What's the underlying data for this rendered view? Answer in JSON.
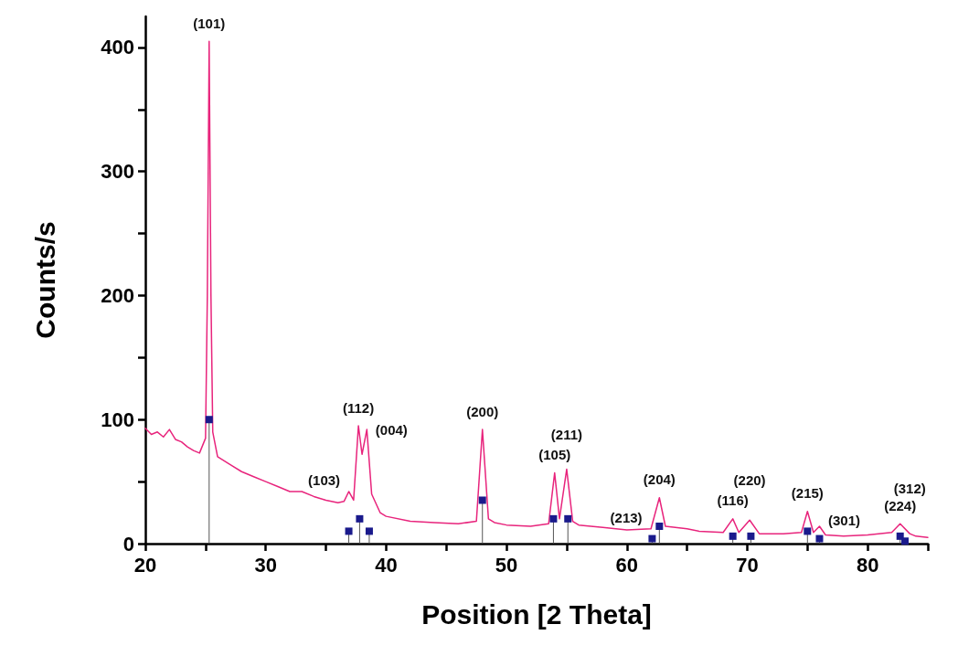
{
  "chart_data": {
    "type": "line",
    "xlabel": "Position [2 Theta]",
    "ylabel": "Counts/s",
    "xlim": [
      20,
      85
    ],
    "ylim": [
      0,
      425
    ],
    "xticks": [
      20,
      {
        "value": 25,
        "label": null
      },
      30,
      {
        "value": 35,
        "label": null
      },
      40,
      {
        "value": 45,
        "label": null
      },
      50,
      {
        "value": 55,
        "label": null
      },
      60,
      {
        "value": 65,
        "label": null
      },
      70,
      {
        "value": 75,
        "label": null
      },
      80,
      {
        "value": 85,
        "label": null
      }
    ],
    "yticks": [
      0,
      {
        "value": 50,
        "label": null
      },
      100,
      {
        "value": 150,
        "label": null
      },
      200,
      {
        "value": 250,
        "label": null
      },
      300,
      {
        "value": 350,
        "label": null
      },
      400
    ],
    "grid": false,
    "series": [
      {
        "color": "#e8247c",
        "marker": "none",
        "line_style": "solid",
        "x": [
          20,
          20.5,
          21,
          21.5,
          22,
          22.5,
          23,
          23.5,
          24,
          24.5,
          25,
          25.15,
          25.3,
          25.45,
          25.6,
          26,
          27,
          28,
          29,
          30,
          31,
          32,
          33,
          34,
          35,
          36,
          36.5,
          36.9,
          37.3,
          37.7,
          38,
          38.4,
          38.8,
          39.5,
          40,
          42,
          44,
          46,
          47.5,
          48,
          48.5,
          49,
          50,
          52,
          53.5,
          54,
          54.4,
          55,
          55.5,
          56,
          58,
          60,
          62,
          62.7,
          63.2,
          65,
          66,
          68,
          68.8,
          69.3,
          70.2,
          71,
          73,
          74.5,
          75,
          75.5,
          76,
          76.5,
          78,
          80,
          82,
          82.7,
          83.5,
          84,
          85
        ],
        "values": [
          93,
          88,
          90,
          86,
          92,
          84,
          82,
          78,
          75,
          73,
          85,
          200,
          405,
          200,
          90,
          70,
          64,
          58,
          54,
          50,
          46,
          42,
          42,
          38,
          35,
          33,
          34,
          42,
          35,
          95,
          72,
          92,
          40,
          25,
          22,
          18,
          17,
          16,
          18,
          92,
          20,
          17,
          15,
          14,
          16,
          57,
          20,
          60,
          18,
          15,
          13,
          11,
          12,
          37,
          14,
          12,
          10,
          9,
          20,
          9,
          19,
          8,
          8,
          9,
          26,
          9,
          14,
          7,
          6,
          7,
          9,
          16,
          8,
          6,
          5
        ]
      },
      {
        "type": "lollipop",
        "color": "#1a1a8c",
        "marker": "square",
        "x": [
          25.3,
          36.9,
          37.8,
          38.6,
          48.0,
          53.9,
          55.1,
          62.1,
          62.7,
          68.8,
          70.3,
          75.0,
          76.0,
          82.7,
          83.1
        ],
        "values": [
          100,
          10,
          20,
          10,
          35,
          20,
          20,
          4,
          14,
          6,
          6,
          10,
          4,
          6,
          2
        ]
      }
    ],
    "annotations": [
      {
        "text": "(101)",
        "x": 25.3,
        "y": 405
      },
      {
        "text": "(103)",
        "x": 36.9,
        "y": 42
      },
      {
        "text": "(112)",
        "x": 37.7,
        "y": 95
      },
      {
        "text": "(004)",
        "x": 38.4,
        "y": 92
      },
      {
        "text": "(200)",
        "x": 48,
        "y": 92
      },
      {
        "text": "(105)",
        "x": 54,
        "y": 57
      },
      {
        "text": "(211)",
        "x": 55,
        "y": 60
      },
      {
        "text": "(213)",
        "x": 62,
        "y": 12
      },
      {
        "text": "(204)",
        "x": 62.7,
        "y": 37
      },
      {
        "text": "(116)",
        "x": 68.8,
        "y": 20
      },
      {
        "text": "(220)",
        "x": 70.2,
        "y": 19
      },
      {
        "text": "(215)",
        "x": 75,
        "y": 26
      },
      {
        "text": "(301)",
        "x": 76,
        "y": 14
      },
      {
        "text": "(224)",
        "x": 82.7,
        "y": 16
      },
      {
        "text": "(312)",
        "x": 83.5,
        "y": 8
      }
    ]
  }
}
